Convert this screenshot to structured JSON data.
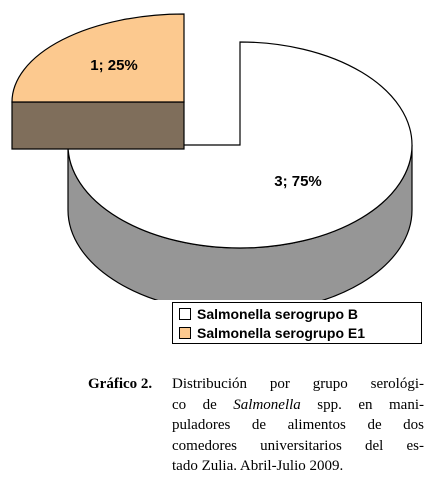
{
  "chart_data": {
    "type": "pie",
    "style": "3d-exploded",
    "slices": [
      {
        "name": "Salmonella serogrupo B",
        "value": 3,
        "percent": 75,
        "label": "3; 75%",
        "color": "#ffffff",
        "side_color": "#969696"
      },
      {
        "name": "Salmonella serogrupo E1",
        "value": 1,
        "percent": 25,
        "label": "1; 25%",
        "color": "#fcc98f",
        "side_color": "#7f6e5b"
      }
    ],
    "legend_position": "bottom-right"
  },
  "caption": {
    "label": "Gráfico 2.",
    "lines": [
      {
        "parts": [
          {
            "text": "Distribución por grupo serológi-"
          }
        ]
      },
      {
        "parts": [
          {
            "text": "co de "
          },
          {
            "text": "Salmonella",
            "italic": true
          },
          {
            "text": " spp. en mani-"
          }
        ]
      },
      {
        "parts": [
          {
            "text": "puladores de alimentos de dos"
          }
        ]
      },
      {
        "parts": [
          {
            "text": "comedores universitarios del es-"
          }
        ]
      },
      {
        "parts": [
          {
            "text": "tado Zulia. Abril-Julio 2009."
          }
        ]
      }
    ]
  }
}
